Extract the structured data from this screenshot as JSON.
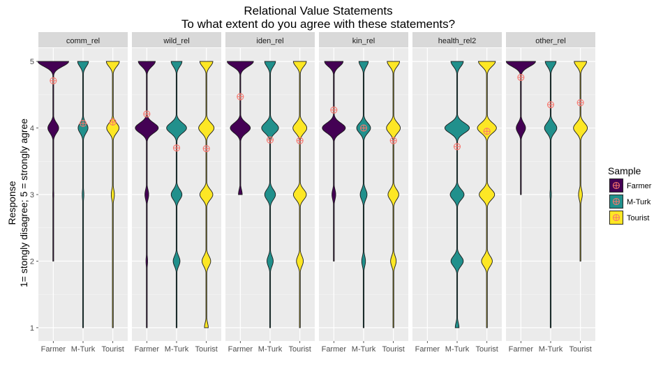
{
  "chart_data": {
    "type": "violin",
    "title": "Relational Value Statements",
    "subtitle": "To what extent do you agree with these statements?",
    "ylabel_line1": "Response",
    "ylabel_line2": "1= stongly disagree; 5 = strongly agree",
    "ylim": [
      0.8,
      5.2
    ],
    "yticks": [
      1,
      2,
      3,
      4,
      5
    ],
    "categories": [
      "Farmer",
      "M-Turk",
      "Tourist"
    ],
    "legend": {
      "title": "Sample",
      "position": "right",
      "entries": [
        {
          "name": "Farmer",
          "color": "#440154"
        },
        {
          "name": "M-Turk",
          "color": "#21908C"
        },
        {
          "name": "Tourist",
          "color": "#FDE725"
        }
      ]
    },
    "mean_marker_color": "#F8766D",
    "panels": [
      {
        "name": "comm_rel",
        "violins": [
          {
            "sample": "Farmer",
            "range": [
              2,
              5
            ],
            "density": [
              [
                1,
                0
              ],
              [
                2,
                0.02
              ],
              [
                3,
                0.03
              ],
              [
                4,
                0.35
              ],
              [
                5,
                1.0
              ]
            ],
            "mean": 4.71
          },
          {
            "sample": "M-Turk",
            "range": [
              1,
              5
            ],
            "density": [
              [
                1,
                0.02
              ],
              [
                2,
                0.02
              ],
              [
                3,
                0.05
              ],
              [
                4,
                0.32
              ],
              [
                5,
                0.35
              ]
            ],
            "mean": 4.07
          },
          {
            "sample": "Tourist",
            "range": [
              1,
              5
            ],
            "density": [
              [
                1,
                0.02
              ],
              [
                2,
                0.02
              ],
              [
                3,
                0.1
              ],
              [
                4,
                0.4
              ],
              [
                5,
                0.42
              ]
            ],
            "mean": 4.09
          }
        ]
      },
      {
        "name": "wild_rel",
        "violins": [
          {
            "sample": "Farmer",
            "range": [
              1,
              5
            ],
            "density": [
              [
                1,
                0.02
              ],
              [
                2,
                0.05
              ],
              [
                3,
                0.12
              ],
              [
                4,
                0.75
              ],
              [
                5,
                0.55
              ]
            ],
            "mean": 4.21
          },
          {
            "sample": "M-Turk",
            "range": [
              1,
              5
            ],
            "density": [
              [
                1,
                0.02
              ],
              [
                2,
                0.22
              ],
              [
                3,
                0.35
              ],
              [
                4,
                0.65
              ],
              [
                5,
                0.35
              ]
            ],
            "mean": 3.7
          },
          {
            "sample": "Tourist",
            "range": [
              1,
              5
            ],
            "density": [
              [
                1,
                0.12
              ],
              [
                2,
                0.28
              ],
              [
                3,
                0.42
              ],
              [
                4,
                0.5
              ],
              [
                5,
                0.42
              ]
            ],
            "mean": 3.69
          }
        ]
      },
      {
        "name": "iden_rel",
        "violins": [
          {
            "sample": "Farmer",
            "range": [
              3,
              5
            ],
            "density": [
              [
                3,
                0.12
              ],
              [
                4,
                0.65
              ],
              [
                5,
                0.85
              ]
            ],
            "mean": 4.47
          },
          {
            "sample": "M-Turk",
            "range": [
              1,
              5
            ],
            "density": [
              [
                1,
                0.02
              ],
              [
                2,
                0.2
              ],
              [
                3,
                0.35
              ],
              [
                4,
                0.55
              ],
              [
                5,
                0.35
              ]
            ],
            "mean": 3.82
          },
          {
            "sample": "Tourist",
            "range": [
              1,
              5
            ],
            "density": [
              [
                1,
                0.02
              ],
              [
                2,
                0.22
              ],
              [
                3,
                0.42
              ],
              [
                4,
                0.45
              ],
              [
                5,
                0.42
              ]
            ],
            "mean": 3.81
          }
        ]
      },
      {
        "name": "kin_rel",
        "violins": [
          {
            "sample": "Farmer",
            "range": [
              2,
              5
            ],
            "density": [
              [
                2,
                0.02
              ],
              [
                3,
                0.12
              ],
              [
                4,
                0.75
              ],
              [
                5,
                0.6
              ]
            ],
            "mean": 4.27
          },
          {
            "sample": "M-Turk",
            "range": [
              1,
              5
            ],
            "density": [
              [
                1,
                0.02
              ],
              [
                2,
                0.12
              ],
              [
                3,
                0.22
              ],
              [
                4,
                0.45
              ],
              [
                5,
                0.3
              ]
            ],
            "mean": 4.0
          },
          {
            "sample": "Tourist",
            "range": [
              1,
              5
            ],
            "density": [
              [
                1,
                0.02
              ],
              [
                2,
                0.18
              ],
              [
                3,
                0.35
              ],
              [
                4,
                0.45
              ],
              [
                5,
                0.4
              ]
            ],
            "mean": 3.81
          }
        ]
      },
      {
        "name": "health_rel2",
        "violins": [
          {
            "sample": "Farmer",
            "range": null,
            "density": [],
            "mean": null
          },
          {
            "sample": "M-Turk",
            "range": [
              1,
              5
            ],
            "density": [
              [
                1,
                0.12
              ],
              [
                2,
                0.4
              ],
              [
                3,
                0.45
              ],
              [
                4,
                0.8
              ],
              [
                5,
                0.4
              ]
            ],
            "mean": 3.72
          },
          {
            "sample": "Tourist",
            "range": [
              1,
              5
            ],
            "density": [
              [
                1,
                0.02
              ],
              [
                2,
                0.35
              ],
              [
                3,
                0.5
              ],
              [
                4,
                0.62
              ],
              [
                5,
                0.55
              ]
            ],
            "mean": 3.95
          }
        ]
      },
      {
        "name": "other_rel",
        "violins": [
          {
            "sample": "Farmer",
            "range": [
              3,
              5
            ],
            "density": [
              [
                3,
                0.02
              ],
              [
                4,
                0.3
              ],
              [
                5,
                0.95
              ]
            ],
            "mean": 4.76
          },
          {
            "sample": "M-Turk",
            "range": [
              1,
              5
            ],
            "density": [
              [
                1,
                0.02
              ],
              [
                2,
                0.02
              ],
              [
                3,
                0.04
              ],
              [
                4,
                0.4
              ],
              [
                5,
                0.35
              ]
            ],
            "mean": 4.35
          },
          {
            "sample": "Tourist",
            "range": [
              2,
              5
            ],
            "density": [
              [
                2,
                0.02
              ],
              [
                3,
                0.12
              ],
              [
                4,
                0.45
              ],
              [
                5,
                0.4
              ]
            ],
            "mean": 4.38
          }
        ]
      }
    ]
  }
}
